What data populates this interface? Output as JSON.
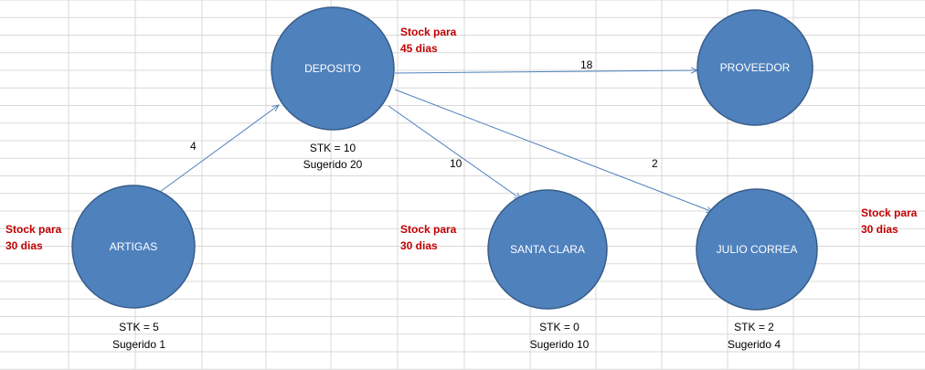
{
  "colors": {
    "grid": "#d9d9d9",
    "node_fill": "#4f81bd",
    "node_stroke": "#385d8a",
    "arrow": "#4f81bd",
    "note": "#c00000"
  },
  "nodes": {
    "deposito": {
      "label": "DEPOSITO",
      "stk": "STK = 10",
      "sugerido": "Sugerido 20"
    },
    "proveedor": {
      "label": "PROVEEDOR"
    },
    "artigas": {
      "label": "ARTIGAS",
      "stk": "STK = 5",
      "sugerido": "Sugerido 1"
    },
    "santa_clara": {
      "label": "SANTA  CLARA",
      "stk": "STK = 0",
      "sugerido": "Sugerido 10"
    },
    "julio_correa": {
      "label": "JULIO CORREA",
      "stk": "STK = 2",
      "sugerido": "Sugerido 4"
    }
  },
  "edges": {
    "artigas_deposito": {
      "label": "4"
    },
    "deposito_proveedor": {
      "label": "18"
    },
    "deposito_santa_clara": {
      "label": "10"
    },
    "deposito_julio_correa": {
      "label": "2"
    }
  },
  "notes": {
    "deposito": {
      "line1": "Stock para",
      "line2": "45 dias"
    },
    "artigas": {
      "line1": "Stock para",
      "line2": "30 dias"
    },
    "santa_clara": {
      "line1": "Stock para",
      "line2": "30 dias"
    },
    "julio_correa": {
      "line1": "Stock para",
      "line2": "30 dias"
    }
  }
}
